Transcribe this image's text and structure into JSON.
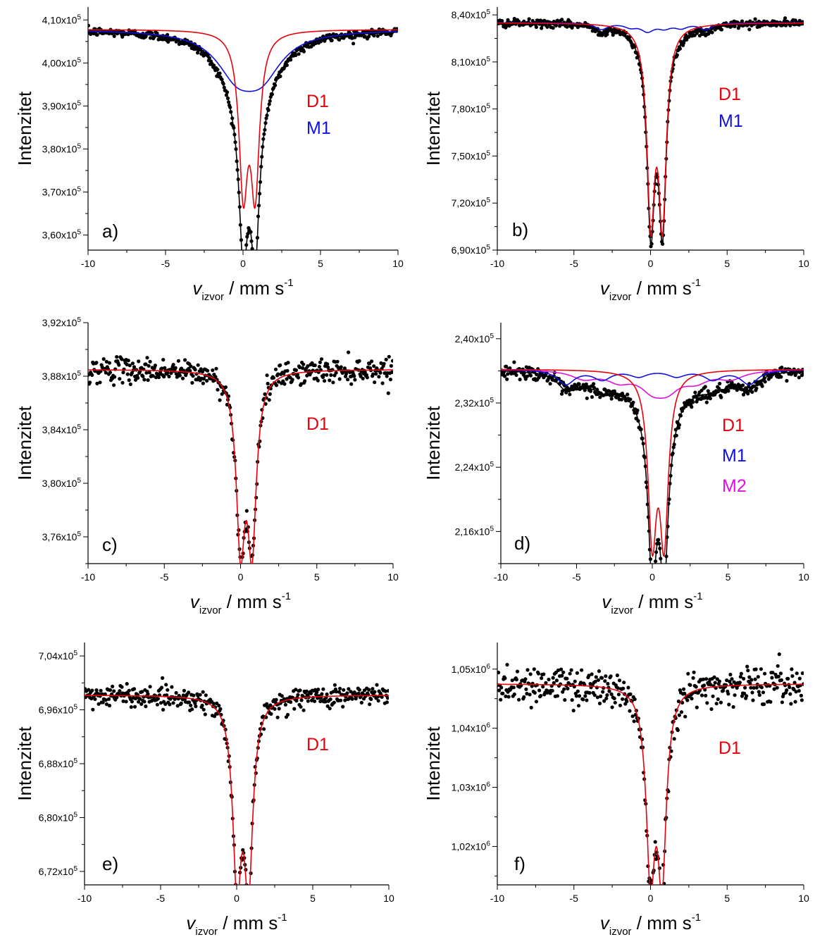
{
  "chart_data": [
    {
      "type": "scatter",
      "panel_label": "a)",
      "ylabel": "Intenzitet",
      "xlabel_main": "v",
      "xlabel_sub": "izvor",
      "xlabel_rest": " / mm s",
      "xlabel_sup": "-1",
      "xlim": [
        -10,
        10
      ],
      "ylim": [
        3.565,
        4.13
      ],
      "y_exp": 5,
      "x_ticks": [
        -10,
        -5,
        0,
        5,
        10
      ],
      "x_tick_labels": [
        "-10",
        "-5",
        "0",
        "5",
        "10"
      ],
      "y_ticks": [
        3.6,
        3.7,
        3.8,
        3.9,
        4.0,
        4.1
      ],
      "y_tick_labels": [
        "3,60",
        "3,70",
        "3,80",
        "3,90",
        "4,00",
        "4,10"
      ],
      "baseline": 4.078,
      "noise": 0.005,
      "components": [
        {
          "name": "D1",
          "color": "#e8000b",
          "shape": "doublet",
          "centers": [
            0.02,
            0.78
          ],
          "depths": [
            0.355,
            0.355
          ],
          "width": 0.34
        },
        {
          "name": "M1",
          "color": "#1010e0",
          "shape": "broad",
          "centers": [
            -0.4,
            1.2
          ],
          "depths": [
            0.09,
            0.09
          ],
          "width": 1.6
        }
      ],
      "legend": [
        {
          "text": "D1",
          "color": "#e8000b"
        },
        {
          "text": "M1",
          "color": "#1010e0"
        }
      ]
    },
    {
      "type": "scatter",
      "panel_label": "b)",
      "ylabel": "Intenzitet",
      "xlabel_main": "v",
      "xlabel_sub": "izvor",
      "xlabel_rest": " / mm s",
      "xlabel_sup": "-1",
      "xlim": [
        -10,
        10
      ],
      "ylim": [
        6.9,
        8.45
      ],
      "y_exp": 5,
      "x_ticks": [
        -10,
        -5,
        0,
        5,
        10
      ],
      "x_tick_labels": [
        "-10",
        "-5",
        "0",
        "5",
        "10"
      ],
      "y_ticks": [
        6.9,
        7.2,
        7.5,
        7.8,
        8.1,
        8.4
      ],
      "y_tick_labels": [
        "6,90",
        "7,20",
        "7,50",
        "7,80",
        "8,10",
        "8,40"
      ],
      "baseline": 8.35,
      "noise": 0.012,
      "components": [
        {
          "name": "D1",
          "color": "#e8000b",
          "shape": "doublet",
          "centers": [
            0.02,
            0.78
          ],
          "depths": [
            1.2,
            1.2
          ],
          "width": 0.3
        },
        {
          "name": "M1",
          "color": "#1010e0",
          "shape": "sextet",
          "centers": [
            -3.2,
            -1.3,
            -0.2,
            0.9,
            2.0,
            3.6
          ],
          "depths": [
            0.04,
            0.025,
            0.05,
            0.03,
            0.03,
            0.04
          ],
          "width": 0.5
        }
      ],
      "legend": [
        {
          "text": "D1",
          "color": "#e8000b"
        },
        {
          "text": "M1",
          "color": "#1010e0"
        }
      ]
    },
    {
      "type": "scatter",
      "panel_label": "c)",
      "ylabel": "Intenzitet",
      "xlabel_main": "v",
      "xlabel_sub": "izvor",
      "xlabel_rest": " / mm s",
      "xlabel_sup": "-1",
      "xlim": [
        -10,
        10
      ],
      "ylim": [
        3.74,
        3.92
      ],
      "y_exp": 5,
      "x_ticks": [
        -10,
        -5,
        0,
        5,
        10
      ],
      "x_tick_labels": [
        "-10",
        "-5",
        "0",
        "5",
        "10"
      ],
      "y_ticks": [
        3.76,
        3.8,
        3.84,
        3.88,
        3.92
      ],
      "y_tick_labels": [
        "3,76",
        "3,80",
        "3,84",
        "3,88",
        "3,92"
      ],
      "baseline": 3.885,
      "noise": 0.0045,
      "components": [
        {
          "name": "D1",
          "color": "#e8000b",
          "shape": "doublet",
          "centers": [
            0.0,
            0.75
          ],
          "depths": [
            0.125,
            0.125
          ],
          "width": 0.34
        }
      ],
      "legend": [
        {
          "text": "D1",
          "color": "#e8000b"
        }
      ]
    },
    {
      "type": "scatter",
      "panel_label": "d)",
      "ylabel": "Intenzitet",
      "xlabel_main": "v",
      "xlabel_sub": "izvor",
      "xlabel_rest": " / mm s",
      "xlabel_sup": "-1",
      "xlim": [
        -10,
        10
      ],
      "ylim": [
        2.12,
        2.42
      ],
      "y_exp": 5,
      "x_ticks": [
        -10,
        -5,
        0,
        5,
        10
      ],
      "x_tick_labels": [
        "-10",
        "-5",
        "0",
        "5",
        "10"
      ],
      "y_ticks": [
        2.16,
        2.24,
        2.32,
        2.4
      ],
      "y_tick_labels": [
        "2,16",
        "2,24",
        "2,32",
        "2,40"
      ],
      "baseline": 2.362,
      "noise": 0.004,
      "components": [
        {
          "name": "D1",
          "color": "#e8000b",
          "shape": "doublet",
          "centers": [
            0.0,
            0.78
          ],
          "depths": [
            0.2,
            0.2
          ],
          "width": 0.34
        },
        {
          "name": "M1",
          "color": "#1010e0",
          "shape": "sextet",
          "centers": [
            -5.7,
            -3.3,
            -0.9,
            1.6,
            4.0,
            6.4
          ],
          "depths": [
            0.018,
            0.012,
            0.008,
            0.008,
            0.012,
            0.018
          ],
          "width": 0.7
        },
        {
          "name": "M2",
          "color": "#e010e0",
          "shape": "sextet",
          "centers": [
            -4.5,
            -2.2,
            0.0,
            1.0,
            2.9,
            5.2
          ],
          "depths": [
            0.01,
            0.012,
            0.02,
            0.02,
            0.012,
            0.01
          ],
          "width": 1.0
        }
      ],
      "legend": [
        {
          "text": "D1",
          "color": "#e8000b"
        },
        {
          "text": "M1",
          "color": "#1010e0"
        },
        {
          "text": "M2",
          "color": "#e010e0"
        }
      ]
    },
    {
      "type": "scatter",
      "panel_label": "e)",
      "ylabel": "Intenzitet",
      "xlabel_main": "v",
      "xlabel_sub": "izvor",
      "xlabel_rest": " / mm s",
      "xlabel_sup": "-1",
      "xlim": [
        -10,
        10
      ],
      "ylim": [
        6.7,
        7.06
      ],
      "y_exp": 5,
      "x_ticks": [
        -10,
        -5,
        0,
        5,
        10
      ],
      "x_tick_labels": [
        "-10",
        "-5",
        "0",
        "5",
        "10"
      ],
      "y_ticks": [
        6.72,
        6.8,
        6.88,
        6.96,
        7.04
      ],
      "y_tick_labels": [
        "6,72",
        "6,80",
        "6,88",
        "6,96",
        "7,04"
      ],
      "baseline": 6.982,
      "noise": 0.008,
      "components": [
        {
          "name": "D1",
          "color": "#e8000b",
          "shape": "doublet",
          "centers": [
            0.02,
            0.78
          ],
          "depths": [
            0.262,
            0.262
          ],
          "width": 0.34
        }
      ],
      "legend": [
        {
          "text": "D1",
          "color": "#e8000b"
        }
      ]
    },
    {
      "type": "scatter",
      "panel_label": "f)",
      "ylabel": "Intenzitet",
      "xlabel_main": "v",
      "xlabel_sub": "izvor",
      "xlabel_rest": " / mm s",
      "xlabel_sup": "-1",
      "xlim": [
        -10,
        10
      ],
      "ylim": [
        1.0135,
        1.0545
      ],
      "y_exp": 6,
      "x_ticks": [
        -10,
        -5,
        0,
        5,
        10
      ],
      "x_tick_labels": [
        "-10",
        "-5",
        "0",
        "5",
        "10"
      ],
      "y_ticks": [
        1.02,
        1.03,
        1.04,
        1.05
      ],
      "y_tick_labels": [
        "1,02",
        "1,03",
        "1,04",
        "1,05"
      ],
      "baseline": 1.0475,
      "noise": 0.0016,
      "components": [
        {
          "name": "D1",
          "color": "#e8000b",
          "shape": "doublet",
          "centers": [
            0.0,
            0.75
          ],
          "depths": [
            0.0305,
            0.0305
          ],
          "width": 0.34
        }
      ],
      "legend": [
        {
          "text": "D1",
          "color": "#e8000b"
        }
      ]
    }
  ]
}
